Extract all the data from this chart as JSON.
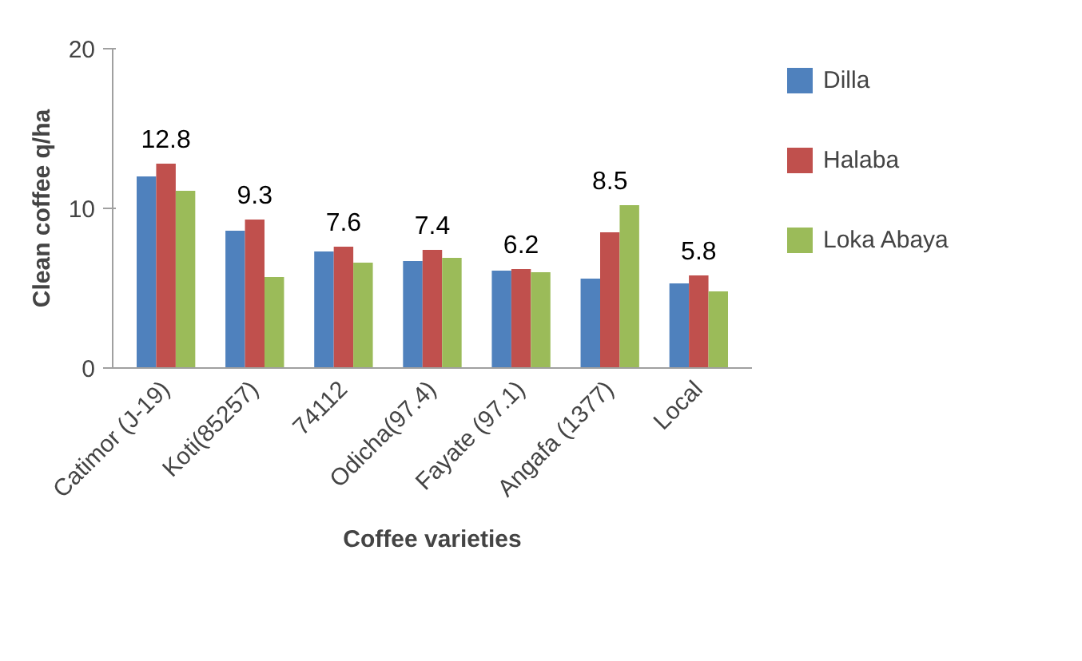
{
  "chart_data": {
    "type": "bar",
    "xlabel": "Coffee varieties",
    "ylabel": "Clean coffee q/ha",
    "categories": [
      "Catimor (J-19)",
      "Koti(85257)",
      "74112",
      "Odicha(97.4)",
      "Fayate (97.1)",
      "Angafa (1377)",
      "Local"
    ],
    "series": [
      {
        "name": "Dilla",
        "color": "#4f81bd",
        "values": [
          12.0,
          8.6,
          7.3,
          6.7,
          6.1,
          5.6,
          5.3
        ]
      },
      {
        "name": "Halaba",
        "color": "#c0504d",
        "values": [
          12.8,
          9.3,
          7.6,
          7.4,
          6.2,
          8.5,
          5.8
        ],
        "value_labels": [
          "12.8",
          "9.3",
          "7.6",
          "7.4",
          "6.2",
          "8.5",
          "5.8"
        ]
      },
      {
        "name": "Loka Abaya",
        "color": "#9bbb59",
        "values": [
          11.1,
          5.7,
          6.6,
          6.9,
          6.0,
          10.2,
          4.8
        ]
      }
    ],
    "ylim": [
      0,
      20
    ],
    "yticks": [
      0,
      10,
      20
    ],
    "grid": false,
    "legend": "right"
  }
}
